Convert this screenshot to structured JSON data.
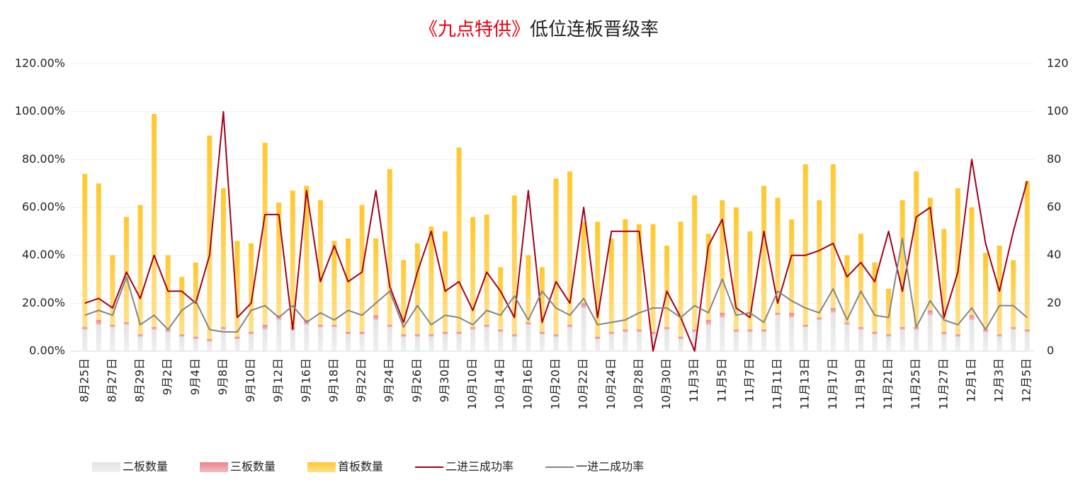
{
  "chart_data": {
    "type": "bar",
    "title_parts": [
      {
        "text": "《九点特供》",
        "color": "#e60012"
      },
      {
        "text": "低位连板晋级率",
        "color": "#222222"
      }
    ],
    "categories": [
      "8月25日",
      null,
      "8月27日",
      null,
      "8月29日",
      null,
      "9月2日",
      null,
      "9月4日",
      null,
      "9月8日",
      null,
      "9月10日",
      null,
      "9月12日",
      null,
      "9月16日",
      null,
      "9月18日",
      null,
      "9月22日",
      null,
      "9月24日",
      null,
      "9月26日",
      null,
      "9月30日",
      null,
      "10月10日",
      null,
      "10月14日",
      null,
      "10月16日",
      null,
      "10月20日",
      null,
      "10月22日",
      null,
      "10月24日",
      null,
      "10月28日",
      null,
      "10月30日",
      null,
      "11月3日",
      null,
      "11月5日",
      null,
      "11月7日",
      null,
      "11月11日",
      null,
      "11月13日",
      null,
      "11月17日",
      null,
      "11月19日",
      null,
      "11月21日",
      null,
      "11月25日",
      null,
      "11月27日",
      null,
      "12月1日",
      null,
      "12月3日",
      null,
      "12月5日"
    ],
    "ylim": [
      0,
      120
    ],
    "yticks": [
      {
        "value": 0,
        "label": "0.00%"
      },
      {
        "value": 20,
        "label": "20.00%"
      },
      {
        "value": 40,
        "label": "40.00%"
      },
      {
        "value": 60,
        "label": "60.00%"
      },
      {
        "value": 80,
        "label": "80.00%"
      },
      {
        "value": 100,
        "label": "100.00%"
      },
      {
        "value": 120,
        "label": "120.00%"
      }
    ],
    "y2lim": [
      0,
      120
    ],
    "y2ticks": [
      0,
      20,
      40,
      60,
      80,
      100,
      120
    ],
    "grid": true,
    "legend": "bottom",
    "series": [
      {
        "name": "二板数量",
        "type": "bar",
        "axis": "y2",
        "color": "#e4e4e4",
        "values": [
          9,
          11,
          10,
          11,
          6,
          9,
          8,
          6,
          5,
          4,
          9,
          5,
          7,
          9,
          13,
          9,
          11,
          10,
          10,
          7,
          7,
          13,
          10,
          6,
          6,
          6,
          7,
          7,
          9,
          10,
          8,
          6,
          11,
          7,
          6,
          10,
          18,
          5,
          7,
          8,
          8,
          7,
          9,
          5,
          8,
          11,
          14,
          8,
          8,
          8,
          15,
          14,
          10,
          13,
          16,
          11,
          9,
          7,
          6,
          9,
          9,
          15,
          7,
          6,
          13,
          8,
          6,
          9,
          8
        ]
      },
      {
        "name": "三板数量",
        "type": "bar",
        "axis": "y2",
        "color": "#e8868c",
        "values": [
          1,
          2,
          1,
          1,
          1,
          1,
          1,
          1,
          1,
          1,
          1,
          1,
          1,
          2,
          2,
          1,
          2,
          1,
          1,
          1,
          1,
          2,
          1,
          1,
          1,
          1,
          1,
          1,
          1,
          1,
          1,
          1,
          1,
          1,
          1,
          1,
          2,
          1,
          1,
          1,
          1,
          1,
          1,
          1,
          1,
          2,
          2,
          1,
          1,
          1,
          1,
          2,
          1,
          1,
          2,
          1,
          1,
          1,
          1,
          1,
          1,
          2,
          1,
          1,
          2,
          1,
          1,
          1,
          1
        ]
      },
      {
        "name": "首板数量",
        "type": "bar",
        "axis": "y2",
        "color": "#ffc82f",
        "values": [
          64,
          57,
          29,
          44,
          54,
          89,
          31,
          24,
          31,
          85,
          58,
          40,
          37,
          76,
          47,
          57,
          56,
          52,
          35,
          39,
          53,
          32,
          65,
          31,
          38,
          45,
          42,
          77,
          46,
          46,
          26,
          58,
          28,
          27,
          65,
          64,
          34,
          48,
          39,
          46,
          44,
          45,
          34,
          48,
          56,
          36,
          47,
          51,
          41,
          60,
          48,
          39,
          67,
          49,
          60,
          28,
          39,
          29,
          19,
          53,
          65,
          47,
          43,
          61,
          45,
          32,
          37,
          28,
          62
        ]
      },
      {
        "name": "二进三成功率",
        "type": "line",
        "color": "#a3001b",
        "values": [
          20,
          22,
          18,
          33,
          22,
          40,
          25,
          25,
          20,
          40,
          100,
          14,
          20,
          57,
          57,
          9,
          67,
          29,
          44,
          29,
          33,
          67,
          27,
          12,
          33,
          50,
          25,
          29,
          17,
          33,
          25,
          14,
          67,
          12,
          29,
          20,
          60,
          14,
          50,
          50,
          50,
          0,
          25,
          14,
          0,
          44,
          55,
          18,
          14,
          50,
          20,
          40,
          40,
          42,
          45,
          31,
          37,
          29,
          50,
          25,
          56,
          60,
          14,
          33,
          80,
          45,
          25,
          50,
          71
        ]
      },
      {
        "name": "一进二成功率",
        "type": "line",
        "color": "#858585",
        "values": [
          15,
          17,
          15,
          31,
          11,
          15,
          9,
          17,
          21,
          9,
          8,
          8,
          17,
          19,
          14,
          19,
          12,
          16,
          13,
          17,
          15,
          20,
          25,
          10,
          19,
          11,
          15,
          14,
          11,
          17,
          15,
          23,
          13,
          25,
          18,
          15,
          22,
          11,
          12,
          13,
          16,
          18,
          18,
          14,
          19,
          16,
          30,
          15,
          16,
          12,
          25,
          21,
          18,
          16,
          26,
          13,
          25,
          15,
          14,
          47,
          10,
          21,
          13,
          11,
          18,
          9,
          19,
          19,
          14
        ]
      }
    ]
  }
}
